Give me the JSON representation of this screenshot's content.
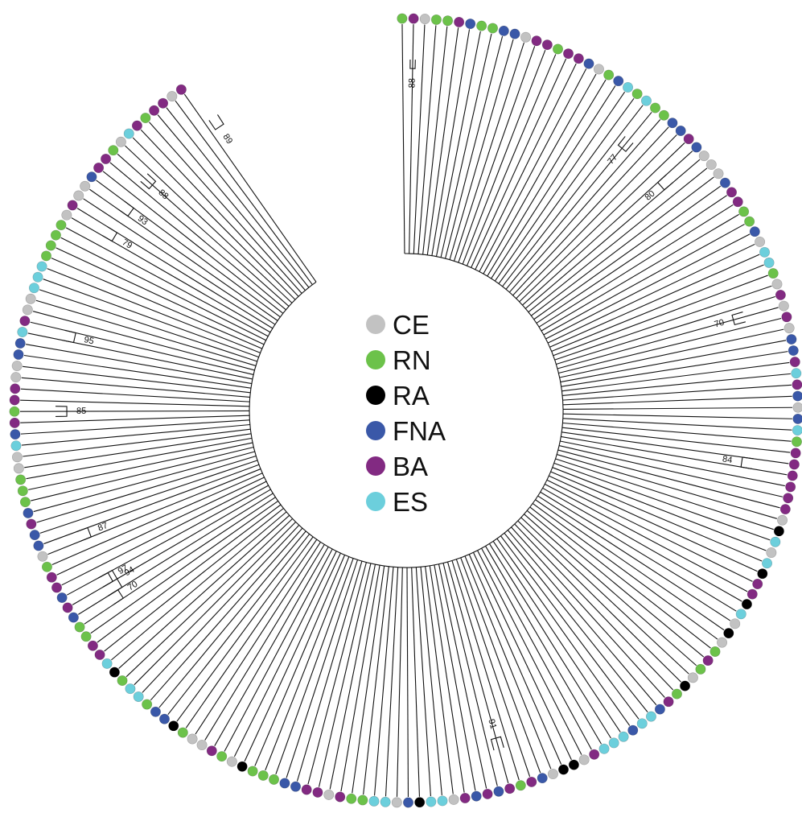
{
  "categories": [
    {
      "code": "CE",
      "color": "#c2c2c2"
    },
    {
      "code": "RN",
      "color": "#6cc24a"
    },
    {
      "code": "RA",
      "color": "#000000"
    },
    {
      "code": "FNA",
      "color": "#3a58a8"
    },
    {
      "code": "BA",
      "color": "#822a82"
    },
    {
      "code": "ES",
      "color": "#6ccfdc"
    }
  ],
  "tips": [
    "RN",
    "BA",
    "CE",
    "RN",
    "RN",
    "BA",
    "FNA",
    "RN",
    "RN",
    "FNA",
    "FNA",
    "CE",
    "BA",
    "BA",
    "RN",
    "BA",
    "BA",
    "FNA",
    "CE",
    "RN",
    "FNA",
    "ES",
    "RN",
    "ES",
    "RN",
    "RN",
    "FNA",
    "FNA",
    "BA",
    "FNA",
    "CE",
    "CE",
    "CE",
    "FNA",
    "BA",
    "BA",
    "RN",
    "RN",
    "FNA",
    "CE",
    "ES",
    "ES",
    "RN",
    "CE",
    "BA",
    "CE",
    "BA",
    "CE",
    "FNA",
    "FNA",
    "BA",
    "ES",
    "BA",
    "FNA",
    "CE",
    "FNA",
    "ES",
    "RN",
    "BA",
    "BA",
    "BA",
    "BA",
    "BA",
    "BA",
    "CE",
    "RA",
    "ES",
    "CE",
    "ES",
    "RA",
    "BA",
    "BA",
    "RA",
    "ES",
    "CE",
    "RA",
    "CE",
    "RN",
    "BA",
    "RN",
    "CE",
    "RA",
    "RN",
    "BA",
    "FNA",
    "ES",
    "ES",
    "FNA",
    "ES",
    "ES",
    "ES",
    "BA",
    "CE",
    "RA",
    "RA",
    "CE",
    "FNA",
    "BA",
    "RN",
    "BA",
    "FNA",
    "BA",
    "FNA",
    "BA",
    "CE",
    "ES",
    "ES",
    "RA",
    "FNA",
    "CE",
    "ES",
    "ES",
    "RN",
    "RN",
    "BA",
    "CE",
    "BA",
    "BA",
    "FNA",
    "FNA",
    "RN",
    "RN",
    "RN",
    "RA",
    "CE",
    "RN",
    "BA",
    "CE",
    "CE",
    "RN",
    "RA",
    "FNA",
    "FNA",
    "RN",
    "ES",
    "ES",
    "RN",
    "RA",
    "ES",
    "BA",
    "BA",
    "RN",
    "RN",
    "FNA",
    "BA",
    "FNA",
    "BA",
    "BA",
    "RN",
    "CE",
    "FNA",
    "FNA",
    "BA",
    "FNA",
    "RN",
    "RN",
    "RN",
    "CE",
    "CE",
    "ES",
    "FNA",
    "BA",
    "RN",
    "BA",
    "BA",
    "CE",
    "CE",
    "FNA",
    "FNA",
    "ES",
    "BA",
    "CE",
    "CE",
    "ES",
    "ES",
    "ES",
    "RN",
    "RN",
    "RN",
    "RN",
    "CE",
    "BA",
    "CE",
    "CE",
    "FNA",
    "BA",
    "BA",
    "RN",
    "CE",
    "ES",
    "BA",
    "RN",
    "BA",
    "BA",
    "CE",
    "BA"
  ],
  "clades": [
    {
      "a": 0.75,
      "b": 1.25,
      "support": "88"
    },
    {
      "a": 23.5,
      "b": 24.5,
      "support": "77"
    },
    {
      "a": 29.0,
      "b": 30.0,
      "support": "80"
    },
    {
      "a": 44.5,
      "b": 45.5,
      "support": "70"
    },
    {
      "a": 59.0,
      "b": 60.0,
      "support": "84"
    },
    {
      "a": 98.5,
      "b": 99.5,
      "support": "91"
    },
    {
      "a": 143.0,
      "b": 145.0,
      "support": "94"
    },
    {
      "a": 142.0,
      "b": 143.0,
      "support": "70"
    },
    {
      "a": 144.0,
      "b": 145.0,
      "support": "97"
    },
    {
      "a": 149.0,
      "b": 150.0,
      "support": "87"
    },
    {
      "a": 161.5,
      "b": 162.5,
      "support": "85"
    },
    {
      "a": 169.0,
      "b": 170.0,
      "support": "95"
    },
    {
      "a": 180.0,
      "b": 181.0,
      "support": "79"
    },
    {
      "a": 183.0,
      "b": 184.0,
      "support": "93"
    },
    {
      "a": 186.5,
      "b": 187.5,
      "support": "88"
    },
    {
      "a": 195.5,
      "b": 196.5,
      "support": "89"
    }
  ]
}
